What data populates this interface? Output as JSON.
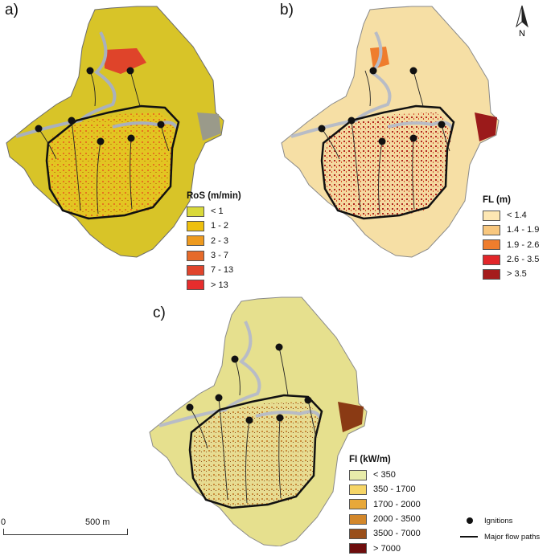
{
  "panels": {
    "a": "a)",
    "b": "b)",
    "c": "c)"
  },
  "legend_ros": {
    "title": "RoS (m/min)",
    "items": [
      {
        "label": "< 1",
        "color": "#d9d93a"
      },
      {
        "label": "1 - 2",
        "color": "#eec00e"
      },
      {
        "label": "2 - 3",
        "color": "#ee9a1f"
      },
      {
        "label": "3 - 7",
        "color": "#e66a2a"
      },
      {
        "label": "7 - 13",
        "color": "#e0442c"
      },
      {
        "label": "> 13",
        "color": "#e62d2d"
      }
    ]
  },
  "legend_fl": {
    "title": "FL (m)",
    "items": [
      {
        "label": "< 1.4",
        "color": "#fde7b3"
      },
      {
        "label": "1.4 - 1.9",
        "color": "#f8c77e"
      },
      {
        "label": "1.9 - 2.6",
        "color": "#ef7d2d"
      },
      {
        "label": "2.6 - 3.5",
        "color": "#e2262a"
      },
      {
        "label": "> 3.5",
        "color": "#a51c1c"
      }
    ]
  },
  "legend_fi": {
    "title": "FI (kW/m)",
    "items": [
      {
        "label": "< 350",
        "color": "#e8ecaa"
      },
      {
        "label": "350 - 1700",
        "color": "#f6d566"
      },
      {
        "label": "1700 - 2000",
        "color": "#e8a83a"
      },
      {
        "label": "2000 - 3500",
        "color": "#d3872a"
      },
      {
        "label": "3500 - 7000",
        "color": "#9a4f1a"
      },
      {
        "label": "> 7000",
        "color": "#6e0d0d"
      }
    ]
  },
  "scale": {
    "left": "0",
    "right": "500 m"
  },
  "key": {
    "ignitions": "Ignitions",
    "flowpaths": "Major flow paths"
  },
  "north": "N",
  "map_colors": {
    "a_base": "#e0c21e",
    "b_base": "#f6dfa5",
    "c_base": "#e4e08a",
    "boundary": "#111111",
    "river": "#9fa6b2"
  }
}
